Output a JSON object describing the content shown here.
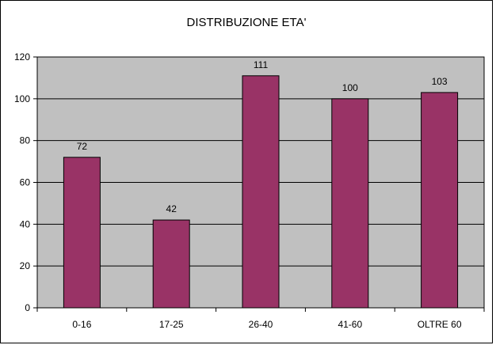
{
  "chart_data": {
    "type": "bar",
    "title": "DISTRIBUZIONE ETA'",
    "categories": [
      "0-16",
      "17-25",
      "26-40",
      "41-60",
      "OLTRE 60"
    ],
    "values": [
      72,
      42,
      111,
      100,
      103
    ],
    "data_labels": [
      "72",
      "42",
      "111",
      "100",
      "103"
    ],
    "xlabel": "",
    "ylabel": "",
    "ylim": [
      0,
      120
    ],
    "yticks": [
      0,
      20,
      40,
      60,
      80,
      100,
      120
    ],
    "grid": true,
    "legend": "none",
    "colors": {
      "bar": "#993366",
      "plot_background": "#c0c0c0",
      "gridline": "#000000",
      "frame": "#000000"
    }
  }
}
